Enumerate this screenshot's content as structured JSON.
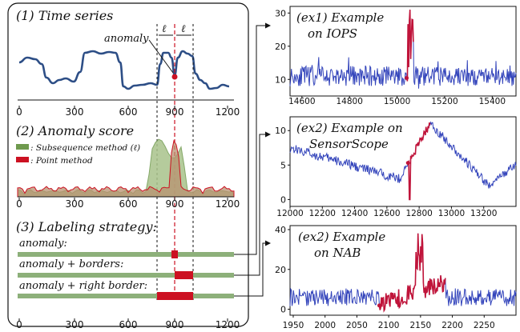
{
  "colors": {
    "ts": "#2d4e86",
    "anom": "#cc1122",
    "green": "#6f9a4e",
    "greenFill": "#a9c38b",
    "brown": "#a37d5c",
    "blue": "#3344bb",
    "red": "#c0143a",
    "grid": "#222"
  },
  "left": {
    "title1": "(1) Time series",
    "anomaly_label": "anomaly",
    "ell": "ℓ",
    "title2": "(2) Anomaly score",
    "legend_sub": ": Subsequence method (ℓ)",
    "legend_point": ": Point method",
    "title3": "(3) Labeling strategy:",
    "strategy1": "anomaly:",
    "strategy2": "anomaly + borders:",
    "strategy3": "anomaly + right border:",
    "ticks": [
      "0",
      "300",
      "600",
      "900",
      "1200"
    ]
  },
  "chart_data": [
    {
      "type": "line",
      "name": "ex1",
      "title": "(ex1) Example on IOPS",
      "title_line1": "(ex1) Example",
      "title_line2": "on IOPS",
      "xticks": [
        "14600",
        "14800",
        "15000",
        "15200",
        "15400"
      ],
      "yticks": [
        "10",
        "20",
        "30"
      ],
      "xlim": [
        14550,
        15500
      ],
      "ylim": [
        5,
        32
      ],
      "baseline": 11,
      "anomaly_x": [
        15040,
        15070
      ],
      "anomaly_peak": 31
    },
    {
      "type": "line",
      "name": "ex2a",
      "title": "(ex2) Example on SensorScope",
      "title_line1": "(ex2) Example on",
      "title_line2": "SensorScope",
      "xticks": [
        "12000",
        "12200",
        "12400",
        "12600",
        "12800",
        "13000",
        "13200"
      ],
      "yticks": [
        "0",
        "5",
        "10"
      ],
      "xlim": [
        12000,
        13400
      ],
      "ylim": [
        -1,
        12
      ],
      "anomaly_x": [
        12730,
        12870
      ]
    },
    {
      "type": "line",
      "name": "ex2b",
      "title": "(ex2) Example on NAB",
      "title_line1": "(ex2) Example",
      "title_line2": "on NAB",
      "xticks": [
        "1950",
        "2000",
        "2050",
        "2100",
        "2150",
        "2200",
        "2250"
      ],
      "yticks": [
        "0",
        "20",
        "40"
      ],
      "xlim": [
        1945,
        2300
      ],
      "ylim": [
        -3,
        42
      ],
      "anomaly_x": [
        2085,
        2190
      ]
    }
  ]
}
